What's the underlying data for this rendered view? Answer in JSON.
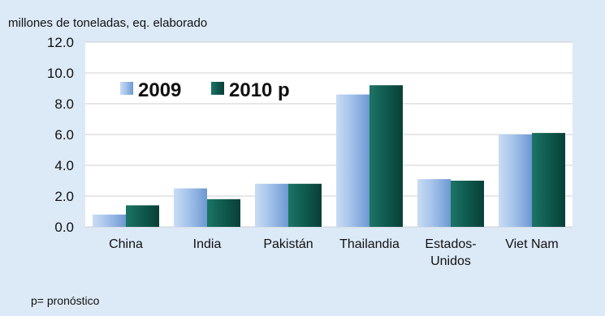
{
  "unit_label": "millones de toneladas, eq. elaborado",
  "footnote": "p= pronóstico",
  "colors": {
    "background": "#dce9f7",
    "plot_area": "#ffffff",
    "series_2009": "#8fb4e3",
    "series_2010": "#0f5a4e"
  },
  "chart_data": {
    "type": "bar",
    "title": "",
    "ylabel": "millones de toneladas, eq. elaborado",
    "categories": [
      [
        "China"
      ],
      [
        "India"
      ],
      [
        "Pakistán"
      ],
      [
        "Thailandia"
      ],
      [
        "Estados-",
        "Unidos"
      ],
      [
        "Viet Nam"
      ]
    ],
    "series": [
      {
        "name": "2009",
        "values": [
          0.8,
          2.5,
          2.8,
          8.6,
          3.1,
          6.0
        ]
      },
      {
        "name": "2010 p",
        "values": [
          1.4,
          1.8,
          2.8,
          9.2,
          3.0,
          6.1
        ]
      }
    ],
    "ylim": [
      0,
      12
    ],
    "yticks": [
      "0.0",
      "2.0",
      "4.0",
      "6.0",
      "8.0",
      "10.0",
      "12.0"
    ],
    "grid": true,
    "legend": "top-left"
  }
}
